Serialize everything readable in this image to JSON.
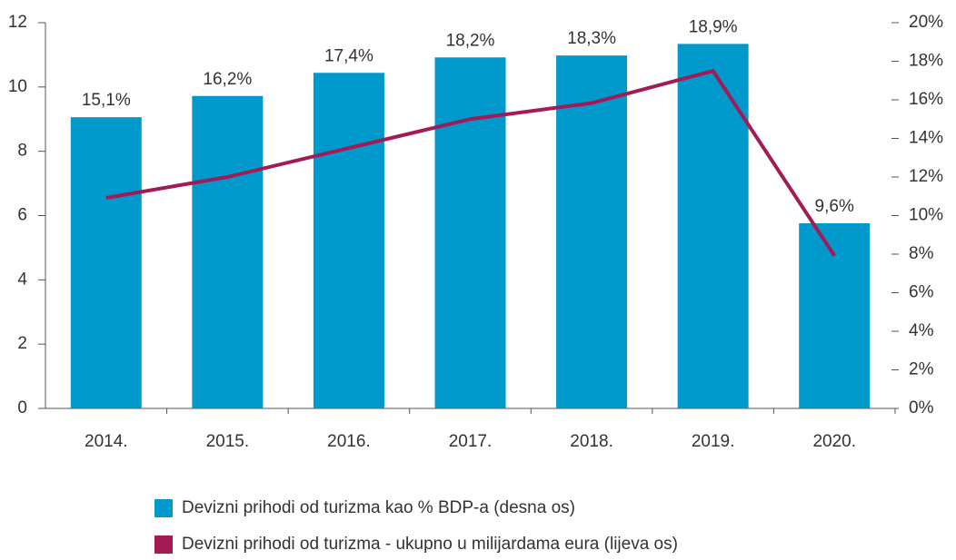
{
  "chart_data": {
    "type": "bar_line",
    "categories": [
      "2014.",
      "2015.",
      "2016.",
      "2017.",
      "2018.",
      "2019.",
      "2020."
    ],
    "series": [
      {
        "name": "Devizni prihodi od turizma kao % BDP-a (desna os)",
        "color": "#0099cc",
        "type": "bar",
        "axis": "y2",
        "values": [
          15.1,
          16.2,
          17.4,
          18.2,
          18.3,
          18.9,
          9.6
        ],
        "value_labels": [
          "15,1%",
          "16,2%",
          "17,4%",
          "18,2%",
          "18,3%",
          "18,9%",
          "9,6%"
        ]
      },
      {
        "name": "Devizni prihodi od turizma - ukupno u milijardama eura (lijeva os)",
        "color": "#a31a55",
        "type": "line",
        "axis": "y",
        "values": [
          6.55,
          7.2,
          8.1,
          9.0,
          9.5,
          10.5,
          4.75
        ]
      }
    ],
    "ylim": [
      0,
      12
    ],
    "yticks": [
      0,
      2,
      4,
      6,
      8,
      10,
      12
    ],
    "y2lim": [
      0,
      20
    ],
    "y2ticks": [
      {
        "value": 0,
        "label": "0%"
      },
      {
        "value": 2,
        "label": "2%"
      },
      {
        "value": 4,
        "label": "4%"
      },
      {
        "value": 6,
        "label": "6%"
      },
      {
        "value": 8,
        "label": "8%"
      },
      {
        "value": 10,
        "label": "10%"
      },
      {
        "value": 12,
        "label": "12%"
      },
      {
        "value": 14,
        "label": "14%"
      },
      {
        "value": 16,
        "label": "16%"
      },
      {
        "value": 18,
        "label": "18%"
      },
      {
        "value": 20,
        "label": "20%"
      }
    ],
    "legend": "bottom-left"
  }
}
